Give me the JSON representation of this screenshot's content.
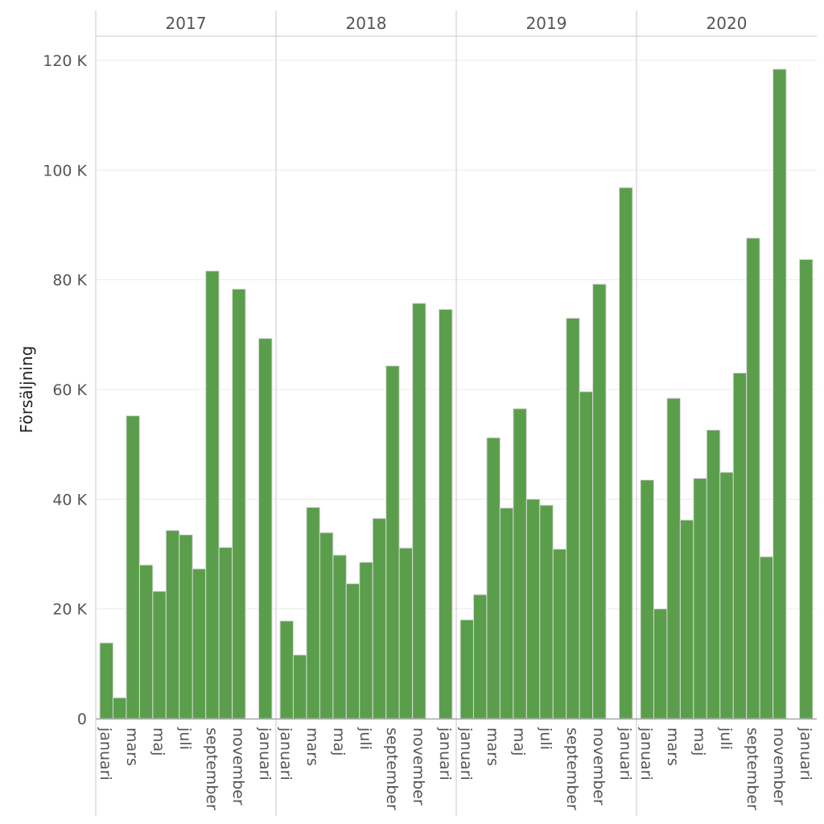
{
  "chart_data": {
    "type": "bar",
    "title": "",
    "xlabel": "",
    "ylabel": "Försäljning",
    "ylim": [
      0,
      125000
    ],
    "yticks": [
      {
        "value": 0,
        "label": "0"
      },
      {
        "value": 20000,
        "label": "20 K"
      },
      {
        "value": 40000,
        "label": "40 K"
      },
      {
        "value": 60000,
        "label": "60 K"
      },
      {
        "value": 80000,
        "label": "80 K"
      },
      {
        "value": 100000,
        "label": "100 K"
      },
      {
        "value": 120000,
        "label": "120 K"
      }
    ],
    "grid": true,
    "bar_color": "#5a9e4b",
    "bar_border_color": "#d9d9d9",
    "x_tick_labels": [
      "januari",
      "mars",
      "maj",
      "juli",
      "september",
      "november",
      "januari"
    ],
    "x_tick_month_index": [
      0,
      2,
      4,
      6,
      8,
      10,
      12
    ],
    "panels": [
      {
        "year": "2017",
        "months": [
          "januari",
          "februari",
          "mars",
          "april",
          "maj",
          "juni",
          "juli",
          "augusti",
          "september",
          "oktober",
          "november",
          "december",
          "januari"
        ],
        "values": [
          13800,
          3800,
          55200,
          28000,
          23200,
          34300,
          33500,
          27300,
          81600,
          31200,
          78300,
          null,
          69300
        ]
      },
      {
        "year": "2018",
        "months": [
          "januari",
          "februari",
          "mars",
          "april",
          "maj",
          "juni",
          "juli",
          "augusti",
          "september",
          "oktober",
          "november",
          "december",
          "januari"
        ],
        "values": [
          17800,
          11600,
          38500,
          33900,
          29800,
          24600,
          28500,
          36500,
          64300,
          31100,
          75700,
          null,
          74600
        ]
      },
      {
        "year": "2019",
        "months": [
          "januari",
          "februari",
          "mars",
          "april",
          "maj",
          "juni",
          "juli",
          "augusti",
          "september",
          "oktober",
          "november",
          "december",
          "januari"
        ],
        "values": [
          18000,
          22600,
          51200,
          38400,
          56500,
          40000,
          38900,
          30900,
          73000,
          59600,
          79200,
          null,
          96800
        ]
      },
      {
        "year": "2020",
        "months": [
          "januari",
          "februari",
          "mars",
          "april",
          "maj",
          "juni",
          "juli",
          "augusti",
          "september",
          "oktober",
          "november",
          "december",
          "januari"
        ],
        "values": [
          43500,
          20000,
          58400,
          36200,
          43800,
          52600,
          44900,
          63000,
          87600,
          29500,
          118400,
          null,
          83700
        ]
      }
    ]
  }
}
